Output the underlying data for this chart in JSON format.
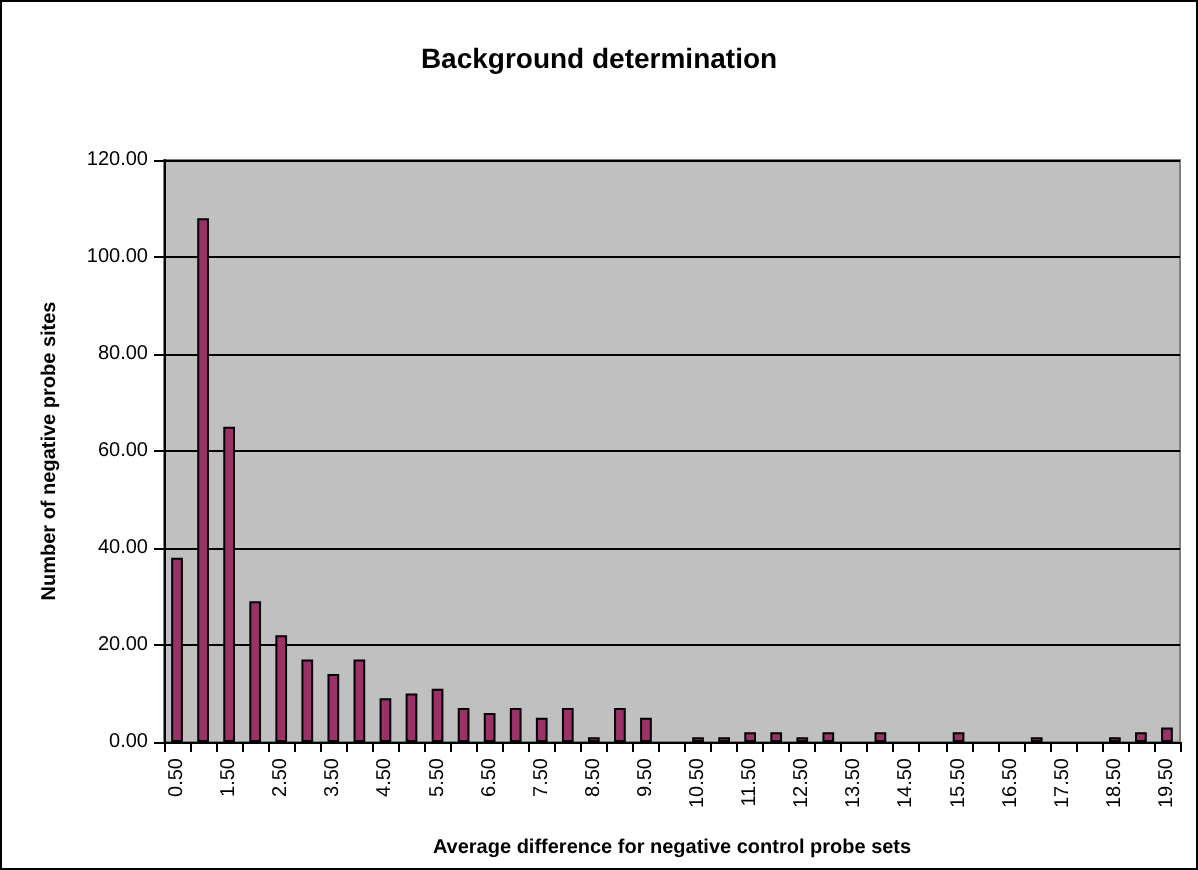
{
  "chart_data": {
    "type": "bar",
    "title": "Background determination",
    "xlabel": "Average difference for negative control probe sets",
    "ylabel": "Number of negative probe sites",
    "categories": [
      "0.50",
      null,
      "1.50",
      null,
      "2.50",
      null,
      "3.50",
      null,
      "4.50",
      null,
      "5.50",
      null,
      "6.50",
      null,
      "7.50",
      null,
      "8.50",
      null,
      "9.50",
      null,
      "10.50",
      null,
      "11.50",
      null,
      "12.50",
      null,
      "13.50",
      null,
      "14.50",
      null,
      "15.50",
      null,
      "16.50",
      null,
      "17.50",
      null,
      "18.50",
      null,
      "19.50"
    ],
    "values": [
      38,
      108,
      65,
      29,
      22,
      17,
      14,
      17,
      9,
      10,
      11,
      7,
      6,
      7,
      5,
      7,
      1,
      7,
      5,
      0,
      1,
      1,
      2,
      2,
      1,
      2,
      0,
      2,
      0,
      0,
      2,
      0,
      0,
      1,
      0,
      0,
      1,
      2,
      3
    ],
    "color": "#993366",
    "ylim": [
      0,
      120
    ],
    "yticks": [
      {
        "value": 0,
        "label": "0.00"
      },
      {
        "value": 20,
        "label": "20.00"
      },
      {
        "value": 40,
        "label": "40.00"
      },
      {
        "value": 60,
        "label": "60.00"
      },
      {
        "value": 80,
        "label": "80.00"
      },
      {
        "value": 100,
        "label": "100.00"
      },
      {
        "value": 120,
        "label": "120.00"
      }
    ],
    "grid": "y"
  }
}
